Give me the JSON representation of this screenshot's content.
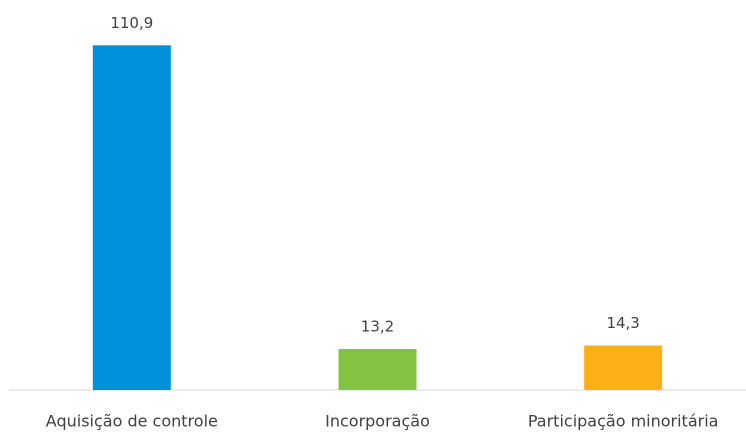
{
  "chart_data": {
    "type": "bar",
    "categories": [
      "Aquisição de controle",
      "Incorporação",
      "Participação minoritária"
    ],
    "values": [
      110.9,
      13.2,
      14.3
    ],
    "value_labels": [
      "110,9",
      "13,2",
      "14,3"
    ],
    "colors": [
      "#0091da",
      "#82c341",
      "#fbb017"
    ],
    "ylim": [
      0,
      120
    ]
  }
}
